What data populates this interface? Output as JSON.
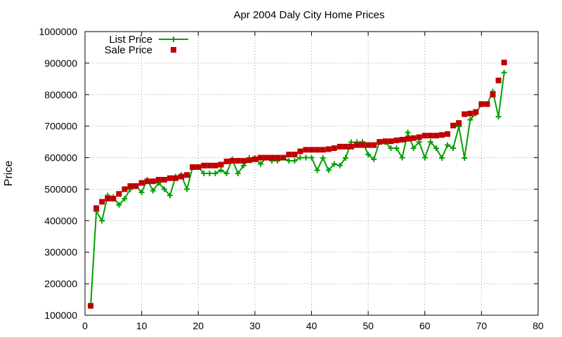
{
  "chart_data": {
    "type": "line",
    "title": "Apr 2004 Daly City Home Prices",
    "xlabel": "",
    "ylabel": "Price",
    "xlim": [
      0,
      80
    ],
    "ylim": [
      100000,
      1000000
    ],
    "xticks": [
      0,
      10,
      20,
      30,
      40,
      50,
      60,
      70,
      80
    ],
    "yticks": [
      100000,
      200000,
      300000,
      400000,
      500000,
      600000,
      700000,
      800000,
      900000,
      1000000
    ],
    "grid": true,
    "legend_position": "top-left",
    "series": [
      {
        "name": "List Price",
        "style": "linespoints",
        "marker": "plus",
        "color": "#00a000",
        "x": [
          1,
          2,
          3,
          4,
          5,
          6,
          7,
          8,
          9,
          10,
          11,
          12,
          13,
          14,
          15,
          16,
          17,
          18,
          19,
          20,
          21,
          22,
          23,
          24,
          25,
          26,
          27,
          28,
          29,
          30,
          31,
          32,
          33,
          34,
          35,
          36,
          37,
          38,
          39,
          40,
          41,
          42,
          43,
          44,
          45,
          46,
          47,
          48,
          49,
          50,
          51,
          52,
          53,
          54,
          55,
          56,
          57,
          58,
          59,
          60,
          61,
          62,
          63,
          64,
          65,
          66,
          67,
          68,
          69,
          70,
          71,
          72,
          73,
          74
        ],
        "y": [
          129000,
          430000,
          400000,
          480000,
          475000,
          450000,
          470000,
          500000,
          510000,
          490000,
          530000,
          495000,
          520000,
          500000,
          480000,
          540000,
          545000,
          500000,
          570000,
          570000,
          550000,
          550000,
          550000,
          560000,
          550000,
          595000,
          550000,
          575000,
          599000,
          599000,
          580000,
          600000,
          590000,
          590000,
          600000,
          590000,
          590000,
          600000,
          600000,
          600000,
          560000,
          599000,
          560000,
          580000,
          575000,
          599000,
          649000,
          649000,
          650000,
          610000,
          595000,
          650000,
          649000,
          630000,
          630000,
          600000,
          680000,
          630000,
          650000,
          600000,
          650000,
          630000,
          599000,
          640000,
          630000,
          699000,
          599000,
          720000,
          740000,
          770000,
          770000,
          810000,
          730000,
          870000
        ]
      },
      {
        "name": "Sale Price",
        "style": "points",
        "marker": "square",
        "color": "#c00000",
        "x": [
          1,
          2,
          3,
          4,
          5,
          6,
          7,
          8,
          9,
          10,
          11,
          12,
          13,
          14,
          15,
          16,
          17,
          18,
          19,
          20,
          21,
          22,
          23,
          24,
          25,
          26,
          27,
          28,
          29,
          30,
          31,
          32,
          33,
          34,
          35,
          36,
          37,
          38,
          39,
          40,
          41,
          42,
          43,
          44,
          45,
          46,
          47,
          48,
          49,
          50,
          51,
          52,
          53,
          54,
          55,
          56,
          57,
          58,
          59,
          60,
          61,
          62,
          63,
          64,
          65,
          66,
          67,
          68,
          69,
          70,
          71,
          72,
          73,
          74
        ],
        "y": [
          130000,
          440000,
          460000,
          470000,
          470000,
          485000,
          500000,
          510000,
          510000,
          520000,
          525000,
          525000,
          530000,
          530000,
          535000,
          535000,
          540000,
          545000,
          570000,
          570000,
          575000,
          575000,
          575000,
          578000,
          588000,
          590000,
          590000,
          590000,
          592000,
          595000,
          600000,
          600000,
          600000,
          600000,
          600000,
          610000,
          610000,
          620000,
          625000,
          625000,
          625000,
          625000,
          627000,
          630000,
          635000,
          635000,
          635000,
          640000,
          640000,
          640000,
          640000,
          650000,
          652000,
          652000,
          655000,
          657000,
          660000,
          662000,
          665000,
          670000,
          670000,
          670000,
          672000,
          675000,
          702000,
          710000,
          738000,
          740000,
          745000,
          770000,
          770000,
          800000,
          845000,
          902000
        ]
      }
    ]
  }
}
